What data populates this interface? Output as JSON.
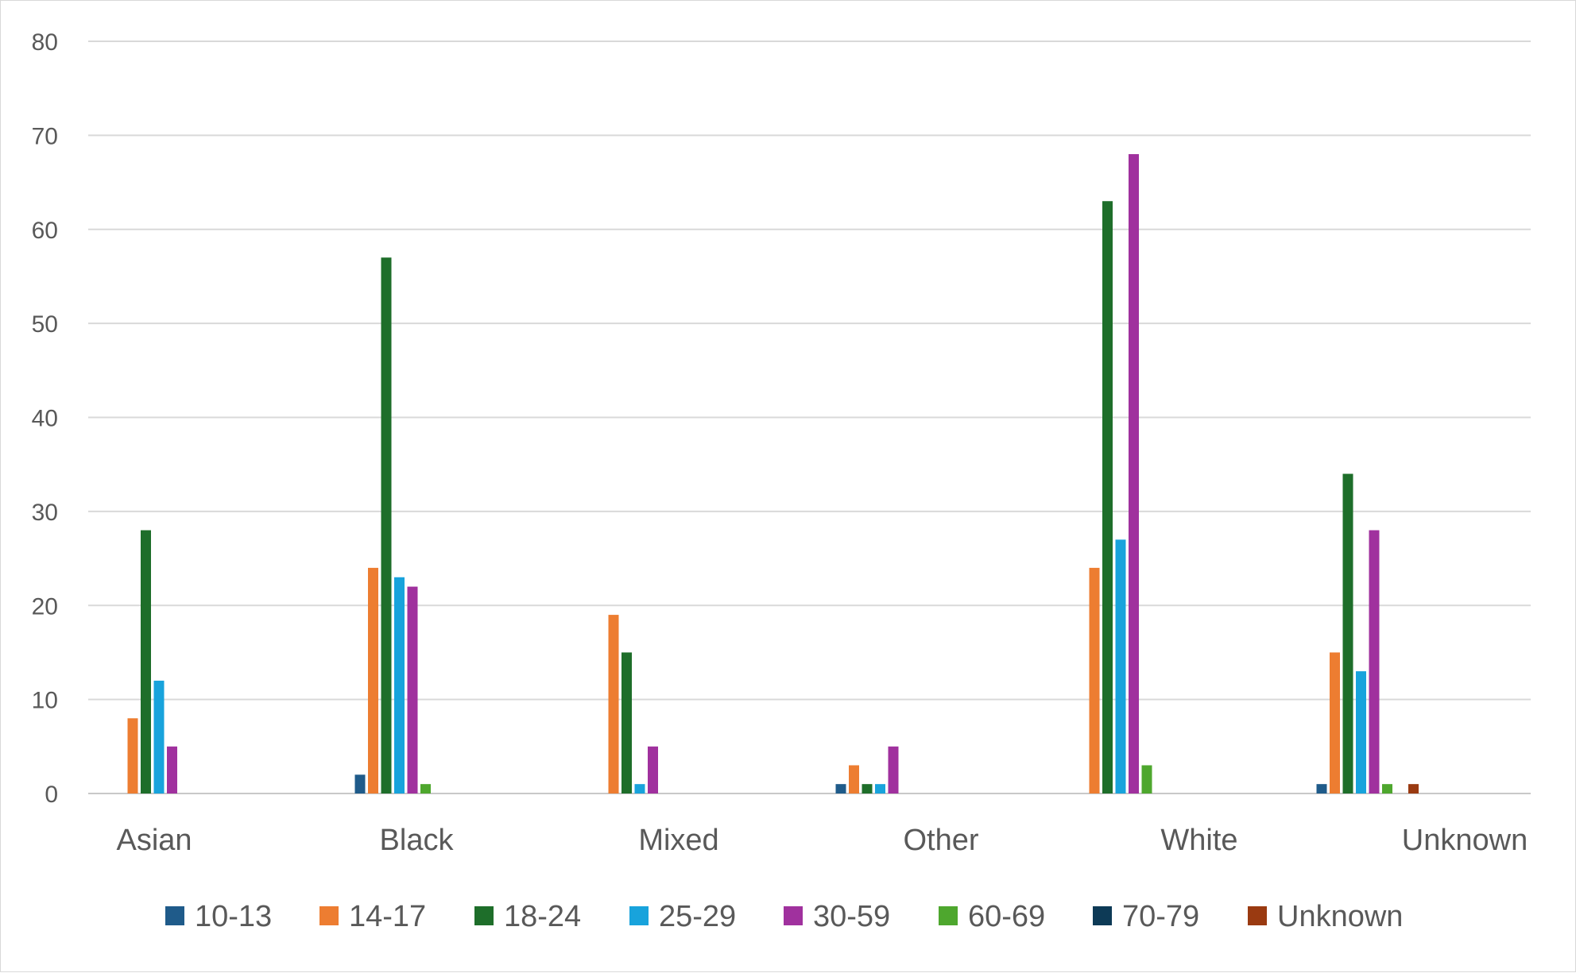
{
  "chart_data": {
    "type": "bar",
    "categories": [
      "Asian",
      "Black",
      "Mixed",
      "Other",
      "White",
      "Unknown"
    ],
    "ylim": [
      0,
      80
    ],
    "yticks": [
      0,
      10,
      20,
      30,
      40,
      50,
      60,
      70,
      80
    ],
    "grid": true,
    "legend_position": "bottom",
    "series": [
      {
        "name": "10-13",
        "color": "#1f5b8a",
        "values": [
          0,
          2,
          0,
          1,
          0,
          1
        ]
      },
      {
        "name": "14-17",
        "color": "#ed7d31",
        "values": [
          8,
          24,
          19,
          3,
          24,
          15
        ]
      },
      {
        "name": "18-24",
        "color": "#1e6e2a",
        "values": [
          28,
          57,
          15,
          1,
          63,
          34
        ]
      },
      {
        "name": "25-29",
        "color": "#18a3dc",
        "values": [
          12,
          23,
          1,
          1,
          27,
          13
        ]
      },
      {
        "name": "30-59",
        "color": "#a0319e",
        "values": [
          5,
          22,
          5,
          5,
          68,
          28
        ]
      },
      {
        "name": "60-69",
        "color": "#4ea72e",
        "values": [
          0,
          1,
          0,
          0,
          3,
          1
        ]
      },
      {
        "name": "70-79",
        "color": "#0d3a56",
        "values": [
          0,
          0,
          0,
          0,
          0,
          0
        ]
      },
      {
        "name": "Unknown",
        "color": "#9a3a11",
        "values": [
          0,
          0,
          0,
          0,
          0,
          1
        ]
      }
    ]
  }
}
